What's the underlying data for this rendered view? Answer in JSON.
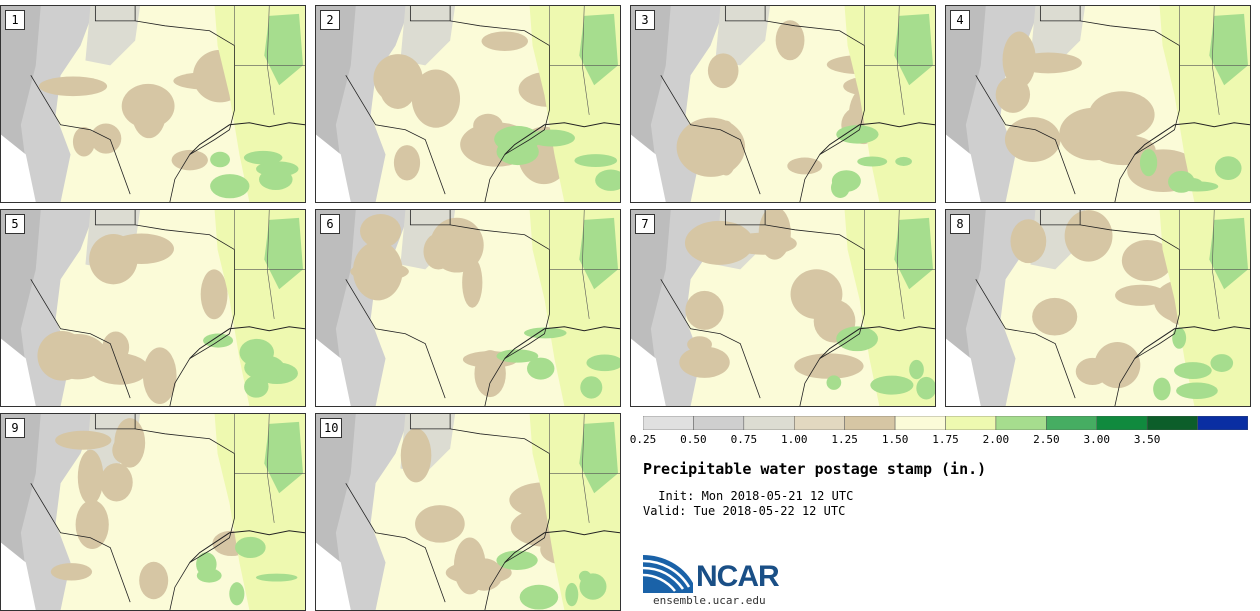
{
  "members": [
    "1",
    "2",
    "3",
    "4",
    "5",
    "6",
    "7",
    "8",
    "9",
    "10"
  ],
  "colorbar": {
    "ticks": [
      "0.25",
      "0.50",
      "0.75",
      "1.00",
      "1.25",
      "1.50",
      "1.75",
      "2.00",
      "2.50",
      "3.00",
      "3.50"
    ],
    "colors": [
      "#e0e0e0",
      "#cfcfcf",
      "#dcdcd2",
      "#e2d8c0",
      "#d6c6a4",
      "#fbfbd8",
      "#eef9b0",
      "#a6dd8e",
      "#46ad62",
      "#108a3e",
      "#0c5e2a",
      "#0a2ea2"
    ]
  },
  "title": "Precipitable water postage stamp (in.)",
  "init": " Init: Mon 2018-05-21 12 UTC",
  "valid": "Valid: Tue 2018-05-22 12 UTC",
  "logo_text": "NCAR",
  "url": "ensemble.ucar.edu"
}
